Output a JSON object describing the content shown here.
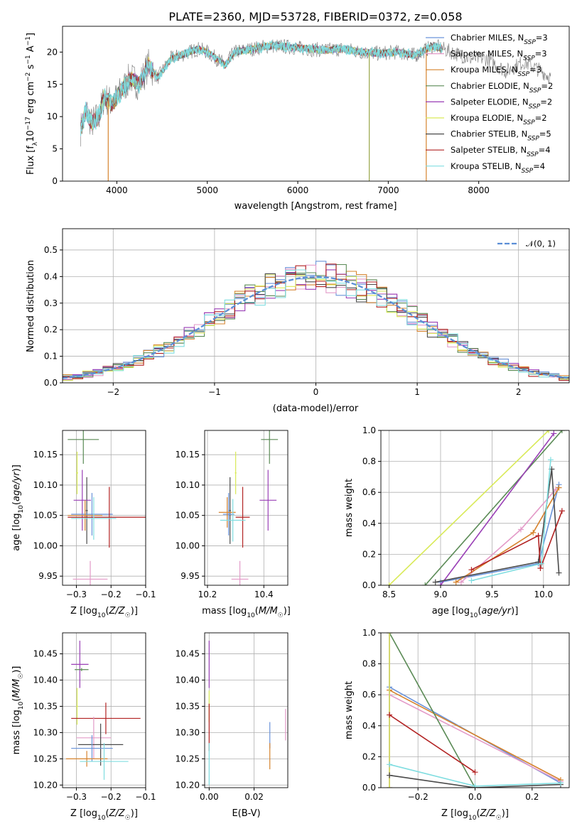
{
  "chart_data": [
    {
      "id": "spectrum",
      "type": "line",
      "title": "PLATE=2360, MJD=53728, FIBERID=0372, z=0.058",
      "xlabel": "wavelength [Angstrom, rest frame]",
      "ylabel": "Flux [f_λ10^-17 erg cm^-2 s^-1 A^-1]",
      "xlim": [
        3400,
        9000
      ],
      "ylim": [
        0,
        24
      ],
      "xticks": [
        4000,
        5000,
        6000,
        7000,
        8000
      ],
      "yticks": [
        0,
        5,
        10,
        15,
        20
      ],
      "grid": false,
      "legend_location": "right",
      "series": [
        {
          "name": "Chabrier MILES",
          "nssp": "3",
          "color": "#6a93d9"
        },
        {
          "name": "Salpeter MILES",
          "nssp": "3",
          "color": "#e39ac8"
        },
        {
          "name": "Kroupa MILES",
          "nssp": "3",
          "color": "#d6832e"
        },
        {
          "name": "Chabrier ELODIE",
          "nssp": "2",
          "color": "#5a8a55"
        },
        {
          "name": "Salpeter ELODIE",
          "nssp": "2",
          "color": "#9a3fb6"
        },
        {
          "name": "Kroupa ELODIE",
          "nssp": "2",
          "color": "#d9ea58"
        },
        {
          "name": "Chabrier STELIB",
          "nssp": "5",
          "color": "#4a4a4a"
        },
        {
          "name": "Salpeter STELIB",
          "nssp": "4",
          "color": "#b22222"
        },
        {
          "name": "Kroupa STELIB",
          "nssp": "4",
          "color": "#7fdde0"
        }
      ],
      "shape_points": [
        [
          3600,
          8
        ],
        [
          3660,
          11
        ],
        [
          3720,
          9
        ],
        [
          3800,
          10
        ],
        [
          3860,
          13
        ],
        [
          3950,
          12
        ],
        [
          4050,
          14
        ],
        [
          4150,
          16
        ],
        [
          4250,
          15
        ],
        [
          4350,
          18
        ],
        [
          4450,
          16
        ],
        [
          4600,
          19
        ],
        [
          4800,
          20
        ],
        [
          4900,
          20.5
        ],
        [
          5000,
          20
        ],
        [
          5100,
          19
        ],
        [
          5200,
          18
        ],
        [
          5300,
          20
        ],
        [
          5500,
          20.5
        ],
        [
          5700,
          21
        ],
        [
          5900,
          20.8
        ],
        [
          6100,
          20.5
        ],
        [
          6300,
          20.3
        ],
        [
          6500,
          20.5
        ],
        [
          6700,
          20
        ],
        [
          6900,
          19.8
        ],
        [
          7100,
          20
        ],
        [
          7300,
          19.5
        ],
        [
          7500,
          21
        ],
        [
          7700,
          20
        ],
        [
          7900,
          19
        ],
        [
          8100,
          19
        ],
        [
          8300,
          17
        ],
        [
          8500,
          18.5
        ],
        [
          8700,
          17
        ],
        [
          8800,
          16
        ]
      ],
      "drops": [
        {
          "x": 3905,
          "color": "#d6832e"
        },
        {
          "x": 6790,
          "color": "#9aa64a"
        },
        {
          "x": 7420,
          "color": "#d6832e"
        }
      ]
    },
    {
      "id": "residuals",
      "type": "histogram",
      "xlabel": "(data-model)/error",
      "ylabel": "Normed distribution",
      "xlim": [
        -2.5,
        2.5
      ],
      "ylim": [
        0,
        0.58
      ],
      "xticks": [
        -2,
        -1,
        0,
        1,
        2
      ],
      "yticks": [
        0.0,
        0.1,
        0.2,
        0.3,
        0.4,
        0.5
      ],
      "grid": true,
      "bin_width": 0.1,
      "legend": "𝒩(0, 1)",
      "legend_location": "top-right",
      "reference_color": "#5b8ed6"
    },
    {
      "id": "age_vs_Z",
      "type": "errorbar",
      "xlabel": "Z [log10(Z/Z☉)]",
      "ylabel": "age [log10(age/yr)]",
      "xlim": [
        -0.34,
        -0.1
      ],
      "ylim": [
        9.935,
        10.19
      ],
      "xticks": [
        -0.3,
        -0.2,
        -0.1
      ],
      "yticks": [
        9.95,
        10.0,
        10.05,
        10.1,
        10.15
      ],
      "grid": true,
      "points": [
        {
          "series": "Chabrier ELODIE",
          "x": -0.28,
          "xerr": 0.045,
          "y": 10.175,
          "yerr": 0.04
        },
        {
          "series": "Kroupa ELODIE",
          "x": -0.298,
          "xerr": 0.003,
          "y": 10.12,
          "yerr": 0.035
        },
        {
          "series": "Chabrier STELIB",
          "x": -0.27,
          "xerr": 0.003,
          "y": 10.058,
          "yerr": 0.055
        },
        {
          "series": "Salpeter ELODIE",
          "x": -0.283,
          "xerr": 0.025,
          "y": 10.075,
          "yerr": 0.05
        },
        {
          "series": "Chabrier MILES",
          "x": -0.255,
          "xerr": 0.06,
          "y": 10.052,
          "yerr": 0.035
        },
        {
          "series": "Kroupa MILES",
          "x": -0.275,
          "xerr": 0.05,
          "y": 10.05,
          "yerr": 0.025
        },
        {
          "series": "Salpeter STELIB",
          "x": -0.205,
          "xerr": 0.12,
          "y": 10.047,
          "yerr": 0.05
        },
        {
          "series": "Kroupa STELIB",
          "x": -0.25,
          "xerr": 0.065,
          "y": 10.045,
          "yerr": 0.035
        },
        {
          "series": "Salpeter MILES",
          "x": -0.26,
          "xerr": 0.05,
          "y": 9.945,
          "yerr": 0.03
        }
      ]
    },
    {
      "id": "age_vs_mass",
      "type": "errorbar",
      "xlabel": "mass [log10(M/M☉)]",
      "ylabel": "",
      "xlim": [
        10.19,
        10.485
      ],
      "ylim": [
        9.935,
        10.19
      ],
      "xticks": [
        10.2,
        10.4
      ],
      "yticks": [
        9.95,
        10.0,
        10.05,
        10.1,
        10.15
      ],
      "grid": true,
      "points": [
        {
          "series": "Chabrier ELODIE",
          "x": 10.42,
          "xerr": 0.03,
          "y": 10.175,
          "yerr": 0.04
        },
        {
          "series": "Kroupa ELODIE",
          "x": 10.3,
          "xerr": 0.003,
          "y": 10.12,
          "yerr": 0.035
        },
        {
          "series": "Chabrier STELIB",
          "x": 10.28,
          "xerr": 0.003,
          "y": 10.058,
          "yerr": 0.055
        },
        {
          "series": "Salpeter ELODIE",
          "x": 10.415,
          "xerr": 0.03,
          "y": 10.075,
          "yerr": 0.05
        },
        {
          "series": "Chabrier MILES",
          "x": 10.275,
          "xerr": 0.02,
          "y": 10.052,
          "yerr": 0.035
        },
        {
          "series": "Kroupa MILES",
          "x": 10.27,
          "xerr": 0.03,
          "y": 10.055,
          "yerr": 0.025
        },
        {
          "series": "Salpeter STELIB",
          "x": 10.325,
          "xerr": 0.025,
          "y": 10.047,
          "yerr": 0.05
        },
        {
          "series": "Kroupa STELIB",
          "x": 10.29,
          "xerr": 0.045,
          "y": 10.042,
          "yerr": 0.035
        },
        {
          "series": "Salpeter MILES",
          "x": 10.315,
          "xerr": 0.03,
          "y": 9.945,
          "yerr": 0.03
        }
      ]
    },
    {
      "id": "weight_vs_age",
      "type": "line",
      "xlabel": "age [log10(age/yr)]",
      "ylabel": "mass weight",
      "xlim": [
        8.42,
        10.25
      ],
      "ylim": [
        0,
        1
      ],
      "xticks": [
        8.5,
        9.0,
        9.5,
        10.0
      ],
      "yticks": [
        0.0,
        0.2,
        0.4,
        0.6,
        0.8,
        1.0
      ],
      "grid": true,
      "series": [
        {
          "name": "Chabrier MILES",
          "points": [
            [
              9.0,
              0.02
            ],
            [
              9.95,
              0.14
            ],
            [
              10.15,
              0.65
            ]
          ]
        },
        {
          "name": "Salpeter MILES",
          "points": [
            [
              9.2,
              0.02
            ],
            [
              9.78,
              0.36
            ],
            [
              10.12,
              0.62
            ]
          ]
        },
        {
          "name": "Kroupa MILES",
          "points": [
            [
              9.15,
              0.02
            ],
            [
              9.9,
              0.34
            ],
            [
              10.15,
              0.63
            ]
          ]
        },
        {
          "name": "Chabrier ELODIE",
          "points": [
            [
              8.85,
              0.0
            ],
            [
              10.18,
              1.0
            ]
          ]
        },
        {
          "name": "Salpeter ELODIE",
          "points": [
            [
              9.0,
              0.0
            ],
            [
              10.1,
              0.98
            ]
          ]
        },
        {
          "name": "Kroupa ELODIE",
          "points": [
            [
              8.5,
              0.0
            ],
            [
              10.05,
              1.0
            ]
          ]
        },
        {
          "name": "Chabrier STELIB",
          "points": [
            [
              8.95,
              0.02
            ],
            [
              9.95,
              0.15
            ],
            [
              10.08,
              0.75
            ],
            [
              10.15,
              0.08
            ]
          ]
        },
        {
          "name": "Salpeter STELIB",
          "points": [
            [
              9.3,
              0.1
            ],
            [
              9.95,
              0.32
            ],
            [
              9.97,
              0.11
            ],
            [
              10.18,
              0.48
            ]
          ]
        },
        {
          "name": "Kroupa STELIB",
          "points": [
            [
              9.3,
              0.03
            ],
            [
              9.98,
              0.14
            ],
            [
              10.07,
              0.81
            ]
          ]
        }
      ]
    },
    {
      "id": "mass_vs_Z",
      "type": "errorbar",
      "xlabel": "Z [log10(Z/Z☉)]",
      "ylabel": "mass [log10(M/M☉)]",
      "xlim": [
        -0.34,
        -0.1
      ],
      "ylim": [
        10.195,
        10.49
      ],
      "xticks": [
        -0.3,
        -0.2,
        -0.1
      ],
      "yticks": [
        10.2,
        10.25,
        10.3,
        10.35,
        10.4,
        10.45
      ],
      "grid": true,
      "points": [
        {
          "series": "Salpeter ELODIE",
          "x": -0.29,
          "xerr": 0.025,
          "y": 10.43,
          "yerr": 0.045
        },
        {
          "series": "Chabrier ELODIE",
          "x": -0.285,
          "xerr": 0.02,
          "y": 10.42,
          "yerr": 0.003
        },
        {
          "series": "Kroupa ELODIE",
          "x": -0.298,
          "xerr": 0.003,
          "y": 10.35,
          "yerr": 0.035
        },
        {
          "series": "Salpeter STELIB",
          "x": -0.215,
          "xerr": 0.1,
          "y": 10.327,
          "yerr": 0.03
        },
        {
          "series": "Salpeter MILES",
          "x": -0.25,
          "xerr": 0.05,
          "y": 10.29,
          "yerr": 0.04
        },
        {
          "series": "Chabrier STELIB",
          "x": -0.23,
          "xerr": 0.065,
          "y": 10.277,
          "yerr": 0.04
        },
        {
          "series": "Chabrier MILES",
          "x": -0.255,
          "xerr": 0.06,
          "y": 10.27,
          "yerr": 0.025
        },
        {
          "series": "Kroupa MILES",
          "x": -0.27,
          "xerr": 0.06,
          "y": 10.25,
          "yerr": 0.015
        },
        {
          "series": "Kroupa STELIB",
          "x": -0.22,
          "xerr": 0.07,
          "y": 10.245,
          "yerr": 0.035
        }
      ]
    },
    {
      "id": "mass_vs_ebv",
      "type": "errorbar",
      "xlabel": "E(B-V)",
      "ylabel": "",
      "xlim": [
        -0.002,
        0.035
      ],
      "ylim": [
        10.195,
        10.49
      ],
      "xticks": [
        0.0,
        0.02
      ],
      "yticks": [
        10.2,
        10.25,
        10.3,
        10.35,
        10.4,
        10.45
      ],
      "grid": true,
      "points": [
        {
          "series": "Salpeter ELODIE",
          "x": 0.0,
          "y": 10.43,
          "yerr": 0.045
        },
        {
          "series": "Kroupa ELODIE",
          "x": 0.0,
          "y": 10.35,
          "yerr": 0.03
        },
        {
          "series": "Salpeter STELIB",
          "x": 0.0,
          "y": 10.31,
          "yerr": 0.045
        },
        {
          "series": "Kroupa STELIB",
          "x": 0.0,
          "y": 10.24,
          "yerr": 0.04
        },
        {
          "series": "Chabrier MILES",
          "x": 0.027,
          "y": 10.295,
          "yerr": 0.025
        },
        {
          "series": "Kroupa MILES",
          "x": 0.027,
          "y": 10.255,
          "yerr": 0.025
        },
        {
          "series": "Salpeter MILES",
          "x": 0.034,
          "y": 10.315,
          "yerr": 0.03
        }
      ]
    },
    {
      "id": "weight_vs_Z",
      "type": "line",
      "xlabel": "Z [log10(Z/Z☉)]",
      "ylabel": "mass weight",
      "xlim": [
        -0.33,
        0.33
      ],
      "ylim": [
        0,
        1
      ],
      "xticks": [
        -0.2,
        0.0,
        0.2
      ],
      "yticks": [
        0.0,
        0.2,
        0.4,
        0.6,
        0.8,
        1.0
      ],
      "grid": true,
      "series": [
        {
          "name": "Chabrier MILES",
          "points": [
            [
              -0.3,
              0.65
            ],
            [
              0.3,
              0.03
            ]
          ]
        },
        {
          "name": "Salpeter MILES",
          "points": [
            [
              -0.3,
              0.6
            ],
            [
              0.3,
              0.04
            ]
          ]
        },
        {
          "name": "Kroupa MILES",
          "points": [
            [
              -0.3,
              0.63
            ],
            [
              0.3,
              0.05
            ]
          ]
        },
        {
          "name": "Chabrier ELODIE",
          "points": [
            [
              -0.3,
              1.0
            ],
            [
              0.0,
              0.0
            ]
          ]
        },
        {
          "name": "Salpeter ELODIE",
          "points": [
            [
              -0.3,
              0.0
            ],
            [
              -0.3,
              1.0
            ]
          ]
        },
        {
          "name": "Kroupa ELODIE",
          "points": [
            [
              -0.3,
              0.0
            ],
            [
              -0.3,
              1.0
            ]
          ]
        },
        {
          "name": "Chabrier STELIB",
          "points": [
            [
              -0.3,
              0.08
            ],
            [
              0.0,
              0.0
            ],
            [
              0.3,
              0.02
            ]
          ]
        },
        {
          "name": "Salpeter STELIB",
          "points": [
            [
              -0.3,
              0.47
            ],
            [
              0.0,
              0.1
            ]
          ]
        },
        {
          "name": "Kroupa STELIB",
          "points": [
            [
              -0.3,
              0.15
            ],
            [
              0.0,
              0.01
            ],
            [
              0.3,
              0.03
            ]
          ]
        }
      ]
    }
  ]
}
